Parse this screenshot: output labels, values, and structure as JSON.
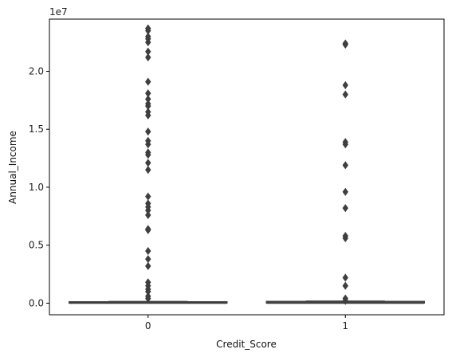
{
  "chart_data": {
    "type": "box",
    "title": "",
    "xlabel": "Credit_Score",
    "ylabel": "Annual_Income",
    "y_offset_label": "1e7",
    "y_scale": 10000000,
    "categories": [
      "0",
      "1"
    ],
    "yticks": [
      0.0,
      0.5,
      1.0,
      1.5,
      2.0
    ],
    "ytick_labels": [
      "0.0",
      "0.5",
      "1.0",
      "1.5",
      "2.0"
    ],
    "ylim": [
      -0.1,
      2.45
    ],
    "boxes": [
      {
        "category": "0",
        "q1": 0.002,
        "median": 0.004,
        "q3": 0.012,
        "whisker_low": 0.0,
        "whisker_high": 0.014,
        "outliers": [
          0.04,
          0.06,
          0.1,
          0.12,
          0.15,
          0.18,
          0.32,
          0.38,
          0.45,
          0.63,
          0.64,
          0.76,
          0.8,
          0.83,
          0.86,
          0.92,
          1.15,
          1.21,
          1.28,
          1.3,
          1.37,
          1.4,
          1.48,
          1.62,
          1.65,
          1.7,
          1.72,
          1.76,
          1.81,
          1.91,
          2.12,
          2.17,
          2.25,
          2.28,
          2.3,
          2.35,
          2.37
        ]
      },
      {
        "category": "1",
        "q1": 0.002,
        "median": 0.004,
        "q3": 0.015,
        "whisker_low": 0.0,
        "whisker_high": 0.018,
        "outliers": [
          0.02,
          0.04,
          0.15,
          0.22,
          0.56,
          0.58,
          0.82,
          0.96,
          1.19,
          1.37,
          1.39,
          1.8,
          1.88,
          2.23,
          2.24
        ]
      }
    ],
    "colors": {
      "box_face": "#3a75ad",
      "edge": "#3f3f3f",
      "outlier": "#3f3f3f"
    }
  }
}
